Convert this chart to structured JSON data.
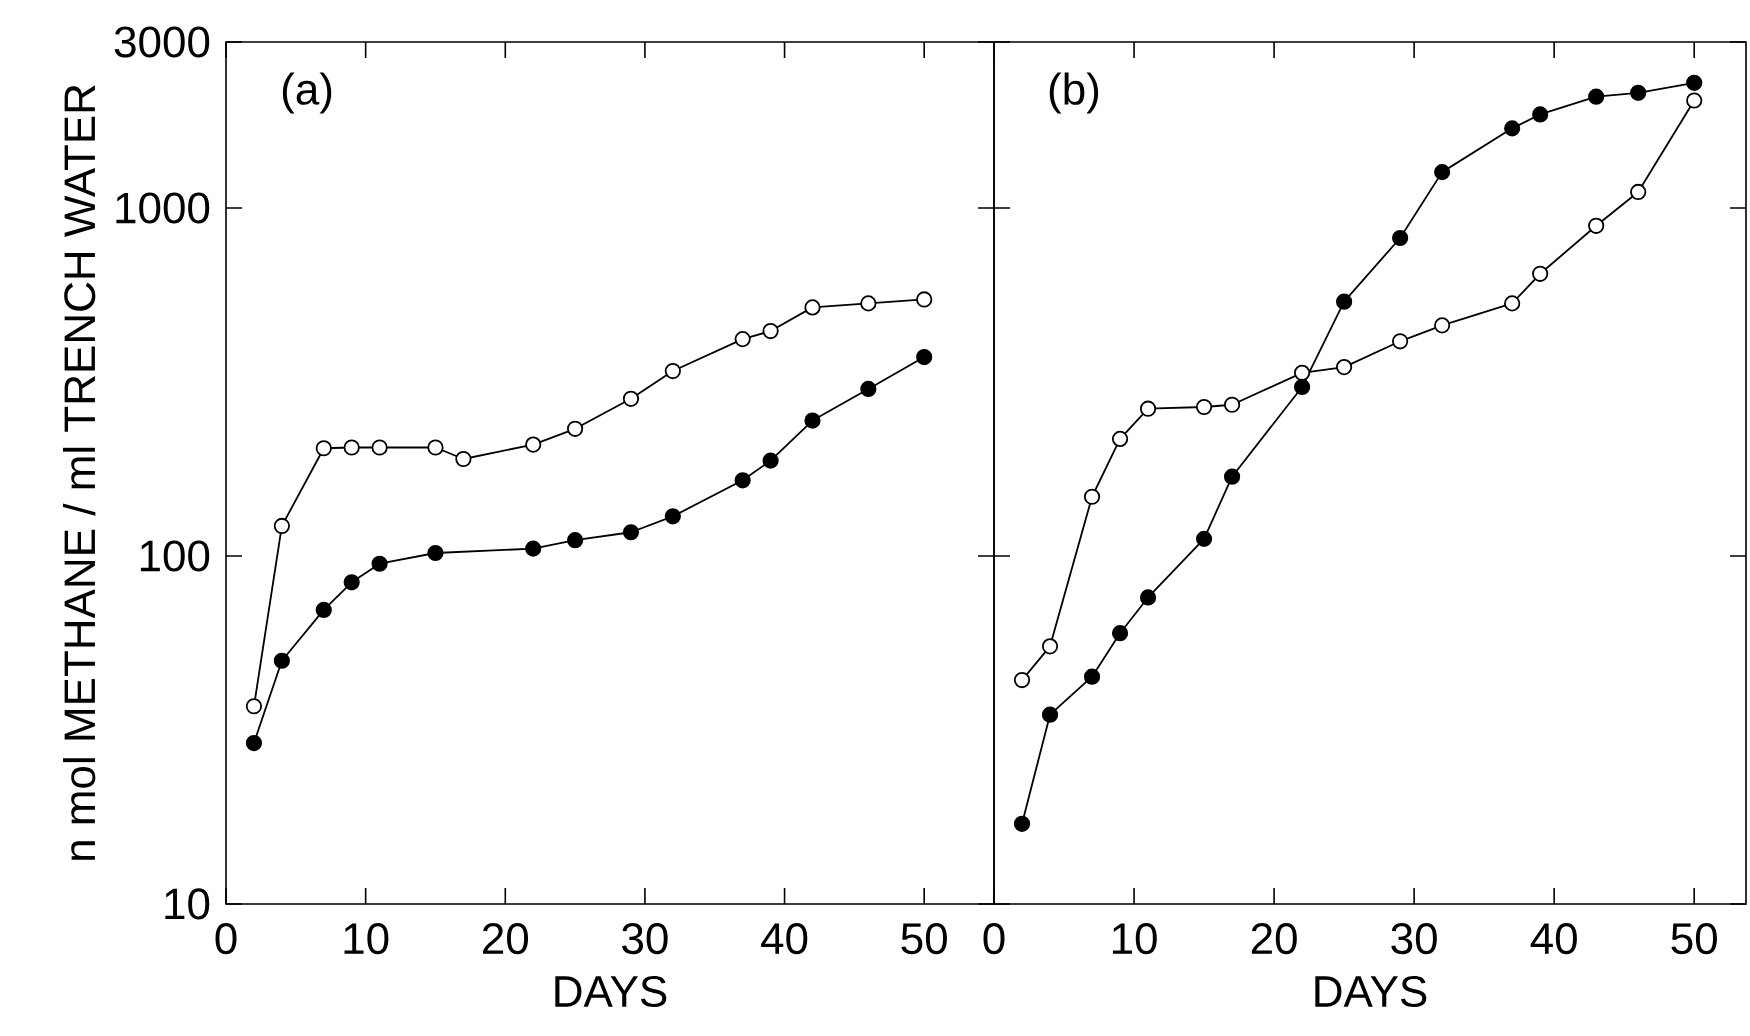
{
  "chart_data": [
    {
      "type": "line",
      "xlabel": "DAYS",
      "ylabel": "n mol METHANE / ml TRENCH WATER",
      "annotations": [
        "(a)"
      ],
      "xlim": [
        0,
        55
      ],
      "ylim": [
        10,
        3000
      ],
      "xticks": [
        0,
        10,
        20,
        30,
        40,
        50
      ],
      "yticks": [
        10,
        100,
        1000,
        3000
      ],
      "log": "y",
      "marker": "circle",
      "line_style": "solid",
      "series": [
        {
          "color": "#000000",
          "x": [
            2,
            4,
            7,
            9,
            11,
            15,
            17,
            22,
            25,
            29,
            32,
            37,
            39,
            42,
            46,
            50
          ],
          "values": [
            37,
            122,
            204,
            205,
            205,
            205,
            190,
            209,
            232,
            283,
            340,
            420,
            443,
            518,
            532,
            546
          ]
        },
        {
          "color": "#000000",
          "x": [
            2,
            4,
            7,
            9,
            11,
            15,
            22,
            25,
            29,
            32,
            37,
            39,
            42,
            46,
            50
          ],
          "values": [
            29,
            50,
            70,
            84,
            95,
            102,
            105,
            111,
            117,
            130,
            165,
            188,
            245,
            302,
            373
          ]
        }
      ]
    },
    {
      "type": "line",
      "xlabel": "DAYS",
      "annotations": [
        "(b)"
      ],
      "xlim": [
        0,
        53.7
      ],
      "ylim": [
        10,
        3000
      ],
      "xticks": [
        0,
        10,
        20,
        30,
        40,
        50
      ],
      "yticks": [
        10,
        100,
        1000,
        3000
      ],
      "log": "y",
      "marker": "circle",
      "line_style": "solid",
      "tick_labels": "x",
      "series": [
        {
          "color": "#000000",
          "x": [
            2,
            4,
            7,
            9,
            11,
            15,
            17,
            22,
            25,
            29,
            32,
            37,
            39,
            43,
            46,
            50
          ],
          "values": [
            44,
            55,
            148,
            217,
            265,
            268,
            272,
            336,
            349,
            414,
            460,
            532,
            647,
            889,
            1112,
            2037
          ]
        },
        {
          "color": "#000000",
          "x": [
            2,
            4,
            7,
            9,
            11,
            15,
            17,
            22,
            25,
            29,
            32,
            37,
            39,
            43,
            46,
            50
          ],
          "values": [
            17,
            35,
            45,
            60,
            76,
            112,
            169,
            306,
            538,
            820,
            1268,
            1694,
            1858,
            2089,
            2143,
            2290
          ]
        }
      ]
    }
  ]
}
